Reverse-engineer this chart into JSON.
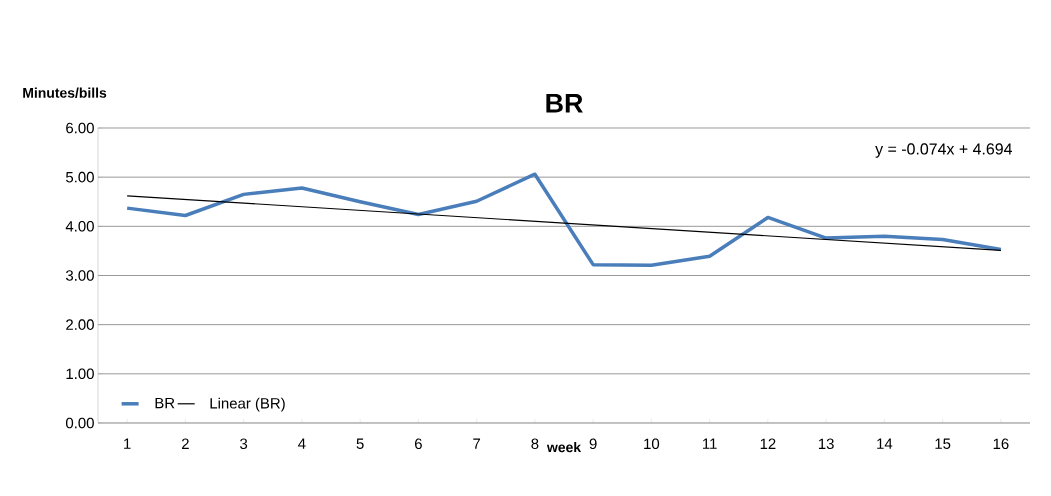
{
  "chart_data": {
    "type": "line",
    "title": "BR",
    "xlabel": "week",
    "ylabel": "Minutes/bills",
    "x": [
      1,
      2,
      3,
      4,
      5,
      6,
      7,
      8,
      9,
      10,
      11,
      12,
      13,
      14,
      15,
      16
    ],
    "series": [
      {
        "name": "BR",
        "color": "#4a7ebb",
        "values": [
          4.37,
          4.22,
          4.65,
          4.78,
          4.5,
          4.24,
          4.51,
          5.06,
          3.22,
          3.21,
          3.39,
          4.18,
          3.76,
          3.8,
          3.73,
          3.53
        ]
      },
      {
        "name": "Linear (BR)",
        "color": "#000000",
        "x": [
          1,
          16
        ],
        "values": [
          4.62,
          3.51
        ]
      }
    ],
    "xlim": [
      0.5,
      16.5
    ],
    "xticks": [
      1,
      2,
      3,
      4,
      5,
      6,
      7,
      8,
      9,
      10,
      11,
      12,
      13,
      14,
      15,
      16
    ],
    "ylim": [
      0,
      6
    ],
    "yticks": [
      {
        "value": 0,
        "label": "0.00"
      },
      {
        "value": 1,
        "label": "1.00"
      },
      {
        "value": 2,
        "label": "2.00"
      },
      {
        "value": 3,
        "label": "3.00"
      },
      {
        "value": 4,
        "label": "4.00"
      },
      {
        "value": 5,
        "label": "5.00"
      },
      {
        "value": 6,
        "label": "6.00"
      }
    ],
    "annotations": [
      "y = -0.074x + 4.694"
    ],
    "grid": "y",
    "legend": "bottom left",
    "marker": "none",
    "line_style": "solid"
  }
}
